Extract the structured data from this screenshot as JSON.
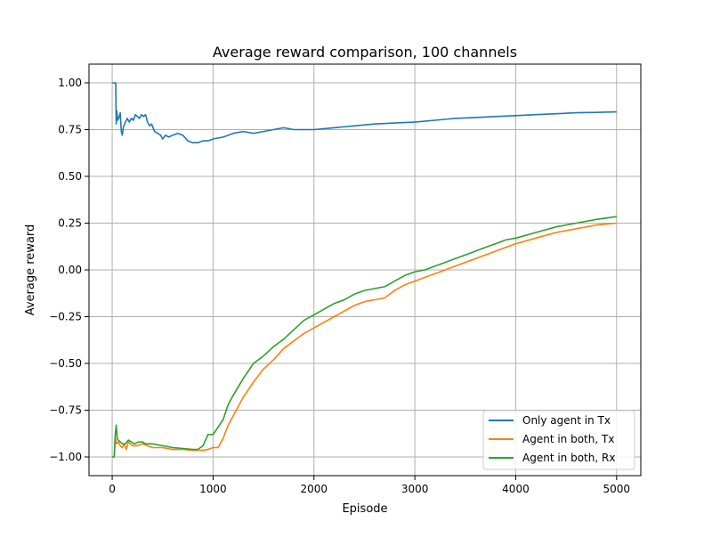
{
  "chart_data": {
    "type": "line",
    "title": "Average reward comparison, 100 channels",
    "xlabel": "Episode",
    "ylabel": "Average reward",
    "xlim": [
      -230,
      5240
    ],
    "ylim": [
      -1.1,
      1.1
    ],
    "xticks": [
      0,
      1000,
      2000,
      3000,
      4000,
      5000
    ],
    "xtick_labels": [
      "0",
      "1000",
      "2000",
      "3000",
      "4000",
      "5000"
    ],
    "yticks": [
      -1.0,
      -0.75,
      -0.5,
      -0.25,
      0.0,
      0.25,
      0.5,
      0.75,
      1.0
    ],
    "ytick_labels": [
      "−1.00",
      "−0.75",
      "−0.50",
      "−0.25",
      "0.00",
      "0.25",
      "0.50",
      "0.75",
      "1.00"
    ],
    "grid": true,
    "legend_position": "bottom-right",
    "series": [
      {
        "name": "Only agent in Tx",
        "color": "#1f77b4",
        "points": [
          [
            0,
            1.0
          ],
          [
            35,
            1.0
          ],
          [
            40,
            0.78
          ],
          [
            45,
            0.85
          ],
          [
            55,
            0.8
          ],
          [
            70,
            0.82
          ],
          [
            80,
            0.84
          ],
          [
            90,
            0.74
          ],
          [
            100,
            0.72
          ],
          [
            110,
            0.76
          ],
          [
            130,
            0.79
          ],
          [
            150,
            0.81
          ],
          [
            170,
            0.79
          ],
          [
            190,
            0.81
          ],
          [
            210,
            0.8
          ],
          [
            230,
            0.83
          ],
          [
            250,
            0.82
          ],
          [
            270,
            0.81
          ],
          [
            290,
            0.83
          ],
          [
            310,
            0.82
          ],
          [
            330,
            0.83
          ],
          [
            350,
            0.79
          ],
          [
            370,
            0.77
          ],
          [
            390,
            0.78
          ],
          [
            420,
            0.74
          ],
          [
            450,
            0.73
          ],
          [
            480,
            0.72
          ],
          [
            500,
            0.7
          ],
          [
            530,
            0.72
          ],
          [
            560,
            0.71
          ],
          [
            600,
            0.72
          ],
          [
            650,
            0.73
          ],
          [
            700,
            0.72
          ],
          [
            750,
            0.69
          ],
          [
            800,
            0.68
          ],
          [
            850,
            0.68
          ],
          [
            900,
            0.69
          ],
          [
            950,
            0.69
          ],
          [
            1000,
            0.7
          ],
          [
            1100,
            0.71
          ],
          [
            1200,
            0.73
          ],
          [
            1300,
            0.74
          ],
          [
            1400,
            0.73
          ],
          [
            1500,
            0.74
          ],
          [
            1600,
            0.75
          ],
          [
            1700,
            0.76
          ],
          [
            1800,
            0.75
          ],
          [
            2000,
            0.75
          ],
          [
            2200,
            0.76
          ],
          [
            2400,
            0.77
          ],
          [
            2600,
            0.78
          ],
          [
            2800,
            0.785
          ],
          [
            3000,
            0.79
          ],
          [
            3200,
            0.8
          ],
          [
            3400,
            0.81
          ],
          [
            3600,
            0.815
          ],
          [
            3800,
            0.82
          ],
          [
            4000,
            0.825
          ],
          [
            4200,
            0.83
          ],
          [
            4400,
            0.835
          ],
          [
            4600,
            0.84
          ],
          [
            4800,
            0.842
          ],
          [
            5000,
            0.845
          ]
        ]
      },
      {
        "name": "Agent in both, Tx",
        "color": "#ff7f0e",
        "points": [
          [
            0,
            -1.0
          ],
          [
            20,
            -1.0
          ],
          [
            30,
            -0.9
          ],
          [
            45,
            -0.93
          ],
          [
            60,
            -0.92
          ],
          [
            80,
            -0.94
          ],
          [
            100,
            -0.95
          ],
          [
            120,
            -0.93
          ],
          [
            140,
            -0.96
          ],
          [
            160,
            -0.92
          ],
          [
            180,
            -0.93
          ],
          [
            200,
            -0.94
          ],
          [
            250,
            -0.94
          ],
          [
            300,
            -0.93
          ],
          [
            350,
            -0.94
          ],
          [
            400,
            -0.95
          ],
          [
            500,
            -0.95
          ],
          [
            600,
            -0.96
          ],
          [
            700,
            -0.96
          ],
          [
            800,
            -0.965
          ],
          [
            900,
            -0.965
          ],
          [
            950,
            -0.96
          ],
          [
            1000,
            -0.95
          ],
          [
            1050,
            -0.95
          ],
          [
            1100,
            -0.9
          ],
          [
            1150,
            -0.83
          ],
          [
            1200,
            -0.78
          ],
          [
            1300,
            -0.68
          ],
          [
            1400,
            -0.6
          ],
          [
            1500,
            -0.53
          ],
          [
            1600,
            -0.48
          ],
          [
            1700,
            -0.42
          ],
          [
            1800,
            -0.38
          ],
          [
            1900,
            -0.34
          ],
          [
            2000,
            -0.31
          ],
          [
            2100,
            -0.28
          ],
          [
            2200,
            -0.25
          ],
          [
            2300,
            -0.22
          ],
          [
            2400,
            -0.19
          ],
          [
            2500,
            -0.17
          ],
          [
            2600,
            -0.16
          ],
          [
            2700,
            -0.15
          ],
          [
            2800,
            -0.11
          ],
          [
            2900,
            -0.08
          ],
          [
            3000,
            -0.06
          ],
          [
            3100,
            -0.04
          ],
          [
            3200,
            -0.02
          ],
          [
            3300,
            0.0
          ],
          [
            3400,
            0.02
          ],
          [
            3500,
            0.04
          ],
          [
            3600,
            0.06
          ],
          [
            3700,
            0.08
          ],
          [
            3800,
            0.1
          ],
          [
            3900,
            0.12
          ],
          [
            4000,
            0.14
          ],
          [
            4200,
            0.17
          ],
          [
            4400,
            0.2
          ],
          [
            4600,
            0.22
          ],
          [
            4800,
            0.24
          ],
          [
            5000,
            0.25
          ]
        ]
      },
      {
        "name": "Agent in both, Rx",
        "color": "#2ca02c",
        "points": [
          [
            0,
            -1.0
          ],
          [
            20,
            -1.0
          ],
          [
            30,
            -0.88
          ],
          [
            40,
            -0.83
          ],
          [
            50,
            -0.9
          ],
          [
            60,
            -0.91
          ],
          [
            80,
            -0.92
          ],
          [
            100,
            -0.93
          ],
          [
            130,
            -0.93
          ],
          [
            160,
            -0.91
          ],
          [
            190,
            -0.92
          ],
          [
            220,
            -0.93
          ],
          [
            260,
            -0.92
          ],
          [
            300,
            -0.92
          ],
          [
            330,
            -0.93
          ],
          [
            400,
            -0.93
          ],
          [
            500,
            -0.94
          ],
          [
            600,
            -0.95
          ],
          [
            700,
            -0.955
          ],
          [
            800,
            -0.96
          ],
          [
            850,
            -0.96
          ],
          [
            900,
            -0.94
          ],
          [
            950,
            -0.88
          ],
          [
            1000,
            -0.88
          ],
          [
            1050,
            -0.84
          ],
          [
            1100,
            -0.8
          ],
          [
            1150,
            -0.72
          ],
          [
            1200,
            -0.67
          ],
          [
            1300,
            -0.58
          ],
          [
            1400,
            -0.5
          ],
          [
            1500,
            -0.46
          ],
          [
            1600,
            -0.41
          ],
          [
            1700,
            -0.37
          ],
          [
            1800,
            -0.32
          ],
          [
            1900,
            -0.27
          ],
          [
            2000,
            -0.24
          ],
          [
            2100,
            -0.21
          ],
          [
            2200,
            -0.18
          ],
          [
            2300,
            -0.16
          ],
          [
            2400,
            -0.13
          ],
          [
            2500,
            -0.11
          ],
          [
            2600,
            -0.1
          ],
          [
            2700,
            -0.09
          ],
          [
            2800,
            -0.06
          ],
          [
            2900,
            -0.03
          ],
          [
            3000,
            -0.01
          ],
          [
            3100,
            0.0
          ],
          [
            3200,
            0.02
          ],
          [
            3300,
            0.04
          ],
          [
            3400,
            0.06
          ],
          [
            3500,
            0.08
          ],
          [
            3600,
            0.1
          ],
          [
            3700,
            0.12
          ],
          [
            3800,
            0.14
          ],
          [
            3900,
            0.16
          ],
          [
            4000,
            0.17
          ],
          [
            4200,
            0.2
          ],
          [
            4400,
            0.23
          ],
          [
            4600,
            0.25
          ],
          [
            4800,
            0.27
          ],
          [
            5000,
            0.285
          ]
        ]
      }
    ]
  }
}
